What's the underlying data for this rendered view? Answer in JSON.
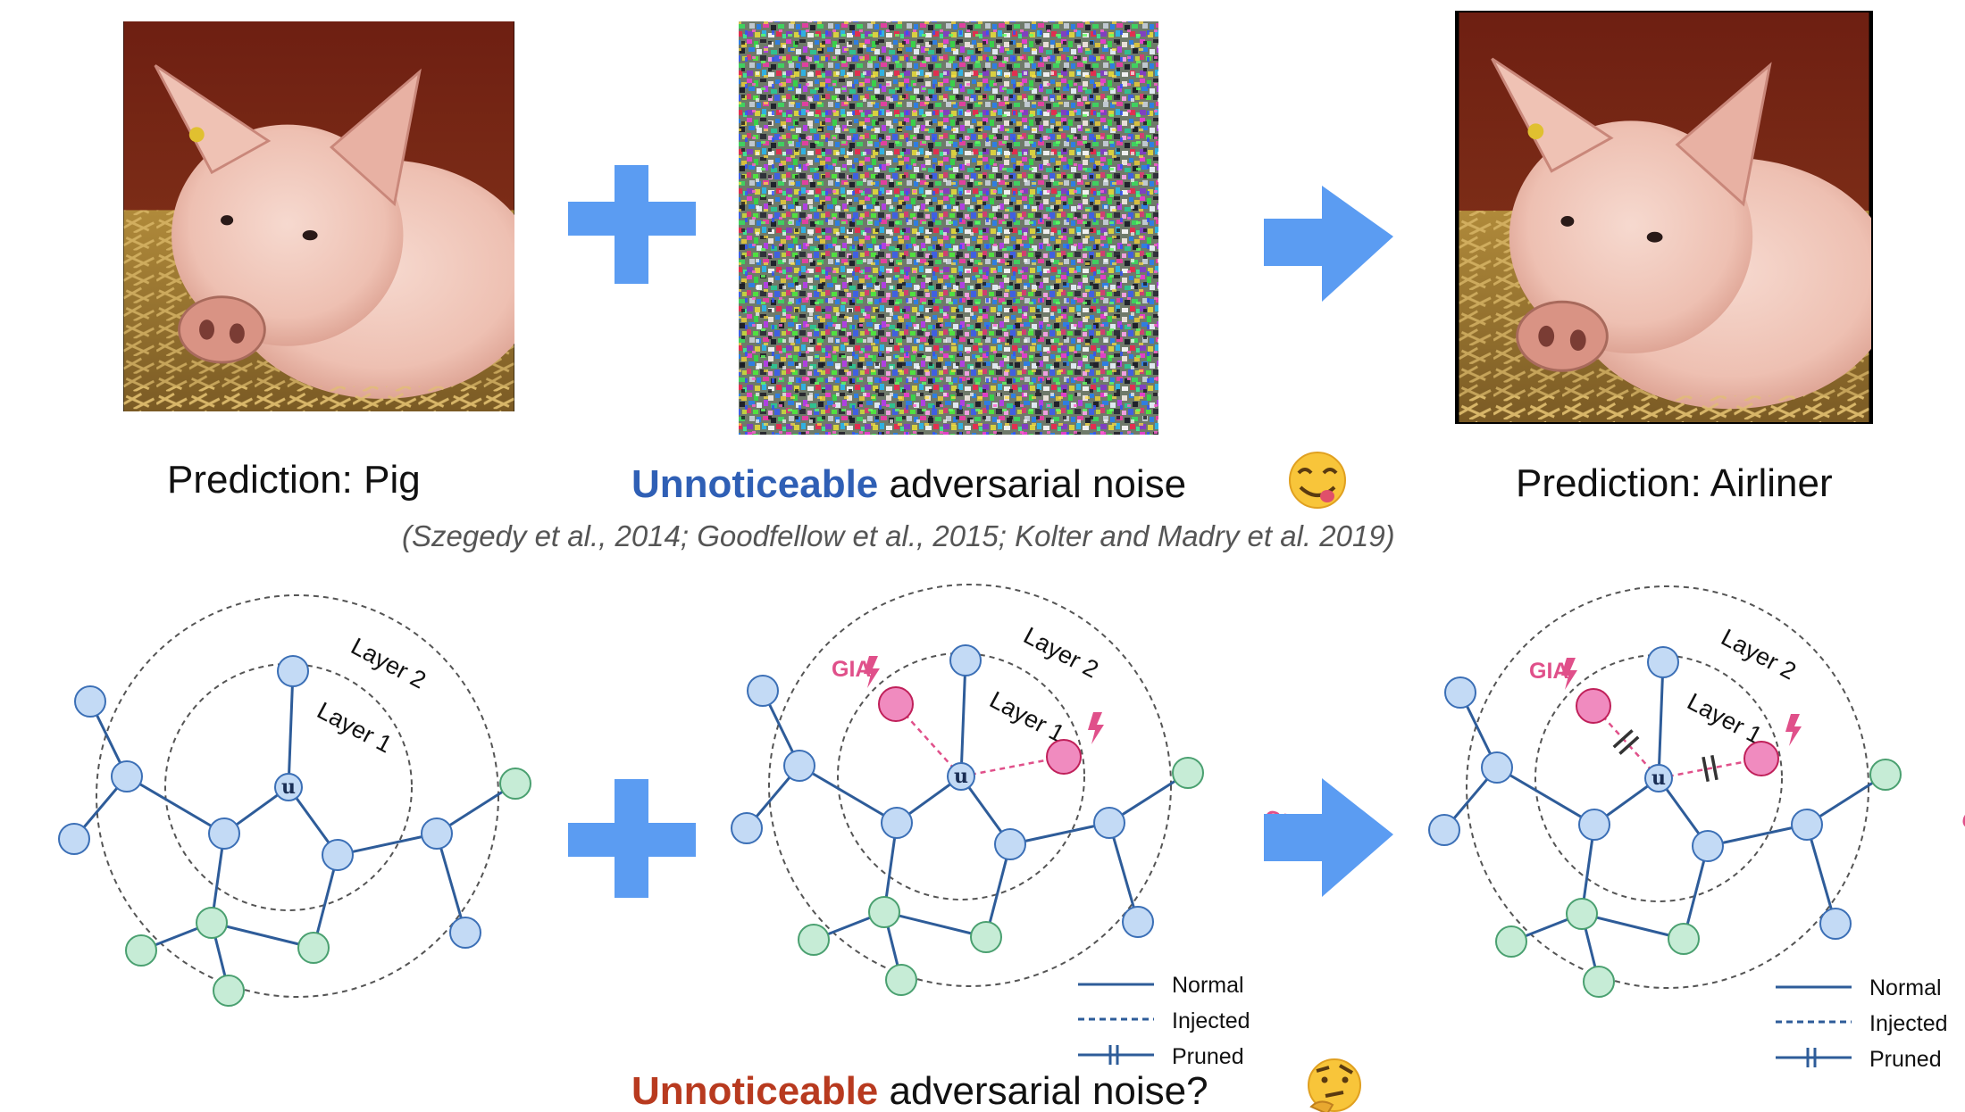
{
  "top": {
    "left_caption": "Prediction: Pig",
    "middle_caption": {
      "highlight": "Unnoticeable",
      "rest": " adversarial noise"
    },
    "right_caption": "Prediction: Airliner",
    "citation": "(Szegedy et al., 2014; Goodfellow et al., 2015; Kolter and Madry  et al. 2019)",
    "emoji": "yum-face-icon"
  },
  "graphs": {
    "node_center": "u",
    "layer_inner": "Layer 1",
    "layer_outer": "Layer 2",
    "injected_label": "GIA"
  },
  "legend": {
    "normal": "Normal",
    "injected": "Injected",
    "pruned": "Pruned"
  },
  "bottom": {
    "caption": {
      "highlight": "Unnoticeable",
      "rest": " adversarial noise?"
    },
    "emoji": "thinking-face-icon"
  },
  "colors": {
    "accent_blue": "#5b9cf2",
    "highlight_blue": "#2f5fb5",
    "highlight_red": "#b83a1f",
    "edge": "#2e5c99",
    "node_blue": "#c3daf5",
    "node_green": "#c6ecd6",
    "node_pink": "#f08bbf",
    "injected": "#e0508a"
  }
}
